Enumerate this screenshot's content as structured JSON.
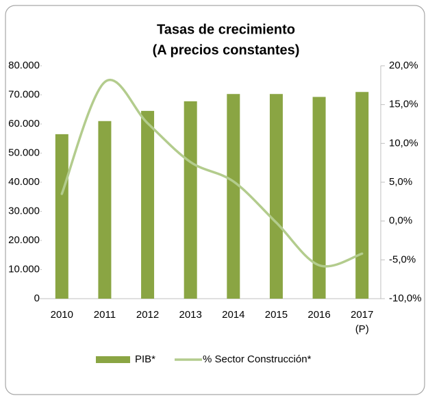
{
  "chart_data": {
    "type": "bar",
    "title": "Tasas de crecimiento",
    "subtitle": "(A precios constantes)",
    "categories": [
      "2010",
      "2011",
      "2012",
      "2013",
      "2014",
      "2015",
      "2016",
      "2017\n(P)"
    ],
    "series": [
      {
        "name": "PIB*",
        "type": "bar",
        "color": "#8aa543",
        "values": [
          56500,
          61000,
          64500,
          67800,
          70300,
          70300,
          69300,
          71000
        ]
      },
      {
        "name": "% Sector Construcción*",
        "type": "line",
        "axis": "y2",
        "color": "#b3cc8d",
        "values": [
          3.5,
          17.9,
          12.6,
          7.6,
          5.1,
          -0.2,
          -5.7,
          -4.2
        ]
      }
    ],
    "ylim": [
      0,
      80000
    ],
    "yticks": [
      0,
      {
        "value": 10000,
        "label": "10.000"
      },
      {
        "value": 20000,
        "label": "20.000"
      },
      {
        "value": 30000,
        "label": "30.000"
      },
      {
        "value": 40000,
        "label": "40.000"
      },
      {
        "value": 50000,
        "label": "50.000"
      },
      {
        "value": 60000,
        "label": "60.000"
      },
      {
        "value": 70000,
        "label": "70.000"
      },
      {
        "value": 80000,
        "label": "80.000"
      }
    ],
    "y2lim": [
      -10,
      20
    ],
    "y2ticks": [
      {
        "value": -10,
        "label": "-10,0%"
      },
      {
        "value": -5,
        "label": "-5,0%"
      },
      {
        "value": 0,
        "label": "0,0%"
      },
      {
        "value": 5,
        "label": "5,0%"
      },
      {
        "value": 10,
        "label": "10,0%"
      },
      {
        "value": 15,
        "label": "15,0%"
      },
      {
        "value": 20,
        "label": "20,0%"
      }
    ],
    "legend": "bottom"
  }
}
